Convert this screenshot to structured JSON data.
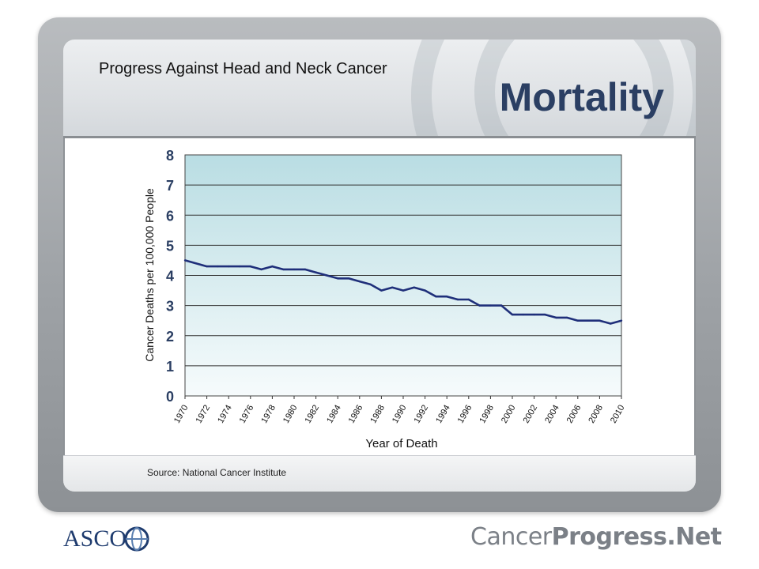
{
  "slide": {
    "subtitle": "Progress Against Head and Neck Cancer",
    "title": "Mortality",
    "source": "Source: National Cancer Institute",
    "title_color": "#2b3f63"
  },
  "logos": {
    "asco_text": "ASCO",
    "cpn_part1": "Cancer",
    "cpn_part2": "Progress",
    "cpn_part3": ".Net"
  },
  "chart_data": {
    "type": "line",
    "title": "",
    "xlabel": "Year of Death",
    "ylabel": "Cancer Deaths per 100,000 People",
    "ylim": [
      0,
      8
    ],
    "yticks": [
      0,
      1,
      2,
      3,
      4,
      5,
      6,
      7,
      8
    ],
    "xlim": [
      1970,
      2010
    ],
    "xticks": [
      "1970",
      "1972",
      "1974",
      "1976",
      "1978",
      "1980",
      "1982",
      "1984",
      "1986",
      "1988",
      "1990",
      "1992",
      "1994",
      "1996",
      "1998",
      "2000",
      "2002",
      "2004",
      "2006",
      "2008",
      "2010"
    ],
    "grid": true,
    "legend": "none",
    "line_color": "#1f2f7a",
    "series": [
      {
        "x": [
          1970,
          1971,
          1972,
          1973,
          1974,
          1975,
          1976,
          1977,
          1978,
          1979,
          1980,
          1981,
          1982,
          1983,
          1984,
          1985,
          1986,
          1987,
          1988,
          1989,
          1990,
          1991,
          1992,
          1993,
          1994,
          1995,
          1996,
          1997,
          1998,
          1999,
          2000,
          2001,
          2002,
          2003,
          2004,
          2005,
          2006,
          2007,
          2008,
          2009,
          2010
        ],
        "values": [
          4.5,
          4.4,
          4.3,
          4.3,
          4.3,
          4.3,
          4.3,
          4.2,
          4.3,
          4.2,
          4.2,
          4.2,
          4.1,
          4.0,
          3.9,
          3.9,
          3.8,
          3.7,
          3.5,
          3.6,
          3.5,
          3.6,
          3.5,
          3.3,
          3.3,
          3.2,
          3.2,
          3.0,
          3.0,
          3.0,
          2.7,
          2.7,
          2.7,
          2.7,
          2.6,
          2.6,
          2.5,
          2.5,
          2.5,
          2.4,
          2.5
        ]
      }
    ]
  }
}
